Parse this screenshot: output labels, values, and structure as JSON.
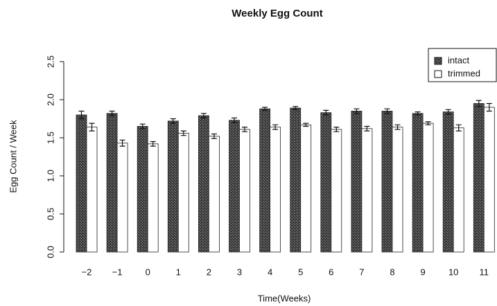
{
  "chart_data": {
    "type": "bar",
    "title": "Weekly Egg Count",
    "xlabel": "Time(Weeks)",
    "ylabel": "Egg Count  / Week",
    "categories": [
      "−2",
      "−1",
      "0",
      "1",
      "2",
      "3",
      "4",
      "5",
      "6",
      "7",
      "8",
      "9",
      "10",
      "11"
    ],
    "series": [
      {
        "name": "intact",
        "color": "#4d4d4d",
        "values": [
          1.8,
          1.82,
          1.65,
          1.72,
          1.79,
          1.73,
          1.88,
          1.89,
          1.83,
          1.85,
          1.85,
          1.82,
          1.84,
          1.95
        ],
        "errors": [
          0.05,
          0.03,
          0.03,
          0.03,
          0.03,
          0.03,
          0.02,
          0.02,
          0.03,
          0.03,
          0.03,
          0.02,
          0.03,
          0.04
        ]
      },
      {
        "name": "trimmed",
        "color": "#ffffff",
        "values": [
          1.64,
          1.43,
          1.42,
          1.56,
          1.52,
          1.61,
          1.64,
          1.67,
          1.61,
          1.62,
          1.64,
          1.69,
          1.63,
          1.9
        ],
        "errors": [
          0.05,
          0.04,
          0.03,
          0.03,
          0.03,
          0.03,
          0.03,
          0.02,
          0.03,
          0.03,
          0.03,
          0.02,
          0.04,
          0.05
        ]
      }
    ],
    "ylim": [
      0,
      2.5
    ],
    "yticks": [
      {
        "value": 0,
        "label": "0.0"
      },
      0.5,
      {
        "value": 1,
        "label": "1.0"
      },
      1.5,
      {
        "value": 2,
        "label": "2.0"
      },
      2.5
    ],
    "legend": "top-right"
  }
}
